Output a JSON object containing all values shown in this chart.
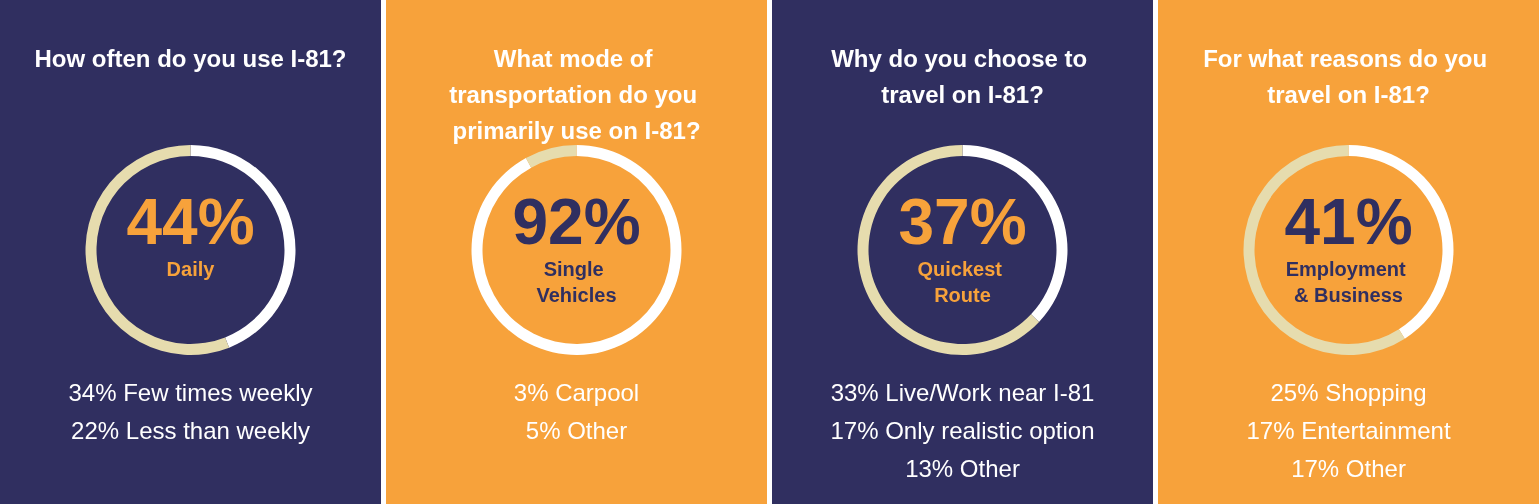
{
  "chart_data": [
    {
      "type": "donut",
      "title": "How often do you use I-81?",
      "categories": [
        "Daily",
        null
      ],
      "values": [
        44,
        56
      ],
      "value_labels": [
        "44%",
        null
      ],
      "colors": [
        "#ffffff",
        "#e6dcae"
      ],
      "annotations": [
        "34% Few times weekly",
        "22% Less than weekly"
      ]
    },
    {
      "type": "donut",
      "title": "What mode of transportation do you primarily use on I-81?",
      "categories": [
        "Single Vehicles",
        null
      ],
      "values": [
        92,
        8
      ],
      "value_labels": [
        "92%",
        null
      ],
      "colors": [
        "#ffffff",
        "#e6dcae"
      ],
      "annotations": [
        "3% Carpool",
        "5% Other"
      ]
    },
    {
      "type": "donut",
      "title": "Why do you choose to travel on I-81?",
      "categories": [
        "Quickest Route",
        null
      ],
      "values": [
        37,
        63
      ],
      "value_labels": [
        "37%",
        null
      ],
      "colors": [
        "#ffffff",
        "#e6dcae"
      ],
      "annotations": [
        "33% Live/Work near I-81",
        "17% Only realistic option",
        "13% Other"
      ]
    },
    {
      "type": "donut",
      "title": "For what reasons do you travel on I-81?",
      "categories": [
        "Employment & Business",
        null
      ],
      "values": [
        41,
        59
      ],
      "value_labels": [
        "41%",
        null
      ],
      "colors": [
        "#ffffff",
        "#e6dcae"
      ],
      "annotations": [
        "25% Shopping",
        "17% Entertainment",
        "17% Other"
      ]
    }
  ]
}
